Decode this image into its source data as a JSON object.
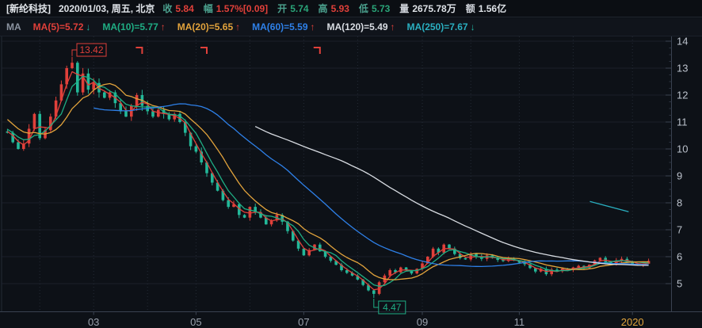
{
  "header": {
    "title": "[新纶科技]",
    "date_info": "2020/01/03, 周五, 北京",
    "fields": [
      {
        "key": "close",
        "label": "收",
        "value": "5.84",
        "tone": "red",
        "label_tone": "teal"
      },
      {
        "key": "change",
        "label": "幅",
        "value": "1.57%[0.09]",
        "tone": "red",
        "label_tone": "teal"
      },
      {
        "key": "open",
        "label": "开",
        "value": "5.74",
        "tone": "green",
        "label_tone": "teal"
      },
      {
        "key": "high",
        "label": "高",
        "value": "5.93",
        "tone": "red",
        "label_tone": "teal"
      },
      {
        "key": "low",
        "label": "低",
        "value": "5.73",
        "tone": "green",
        "label_tone": "teal"
      },
      {
        "key": "volume",
        "label": "量",
        "value": "2675.78万",
        "tone": "white",
        "label_tone": "white"
      },
      {
        "key": "turnover",
        "label": "额",
        "value": "1.56亿",
        "tone": "white",
        "label_tone": "white"
      }
    ]
  },
  "ma_bar": {
    "prefix": "MA",
    "items": [
      {
        "key": "ma5",
        "text": "MA(5)=5.72",
        "arrow": "down"
      },
      {
        "key": "ma10",
        "text": "MA(10)=5.77",
        "arrow": "up"
      },
      {
        "key": "ma20",
        "text": "MA(20)=5.65",
        "arrow": "up"
      },
      {
        "key": "ma60",
        "text": "MA(60)=5.59",
        "arrow": "up"
      },
      {
        "key": "ma120",
        "text": "MA(120)=5.49",
        "arrow": "up"
      },
      {
        "key": "ma250",
        "text": "MA(250)=7.67",
        "arrow": "down"
      }
    ]
  },
  "chart_data": {
    "type": "candlestick",
    "title": "新纶科技 daily K-line, Jan 2019 - Jan 2020",
    "y_axis": {
      "min": 5,
      "max": 14,
      "tick_step": 1,
      "ticks": [
        14,
        13,
        12,
        11,
        10,
        9,
        8,
        7,
        6,
        5
      ]
    },
    "x_axis": {
      "labels": [
        {
          "text": "03",
          "index": 16,
          "highlight": false
        },
        {
          "text": "05",
          "index": 35,
          "highlight": false
        },
        {
          "text": "07",
          "index": 55,
          "highlight": false
        },
        {
          "text": "09",
          "index": 77,
          "highlight": false
        },
        {
          "text": "11",
          "index": 95,
          "highlight": false
        },
        {
          "text": "2020",
          "index": 116,
          "highlight": true
        }
      ],
      "minor_gridline_indices": [
        6,
        26,
        45,
        65,
        86,
        105
      ]
    },
    "closes": [
      10.6,
      10.25,
      10.0,
      10.2,
      10.75,
      11.3,
      10.4,
      10.7,
      11.2,
      11.8,
      12.4,
      13.0,
      13.2,
      12.1,
      12.8,
      12.2,
      12.45,
      12.1,
      11.9,
      12.1,
      11.7,
      11.4,
      11.2,
      11.6,
      12.0,
      11.6,
      11.4,
      11.2,
      11.45,
      11.3,
      11.1,
      11.3,
      11.0,
      10.6,
      10.1,
      9.9,
      9.5,
      9.1,
      8.75,
      8.45,
      8.1,
      7.85,
      7.95,
      7.55,
      7.45,
      7.85,
      7.65,
      7.45,
      7.2,
      7.35,
      7.55,
      7.3,
      6.95,
      6.6,
      6.3,
      6.05,
      6.25,
      6.45,
      6.2,
      6.0,
      5.85,
      5.7,
      5.5,
      5.4,
      5.3,
      5.15,
      4.95,
      4.75,
      4.62,
      5.05,
      5.3,
      5.5,
      5.42,
      5.6,
      5.5,
      5.38,
      5.55,
      5.75,
      6.0,
      6.3,
      6.15,
      6.45,
      6.3,
      6.1,
      5.95,
      5.9,
      6.1,
      6.0,
      5.92,
      6.05,
      5.95,
      5.88,
      5.84,
      5.92,
      5.86,
      5.78,
      5.72,
      5.58,
      5.45,
      5.55,
      5.35,
      5.52,
      5.46,
      5.56,
      5.5,
      5.6,
      5.66,
      5.58,
      5.7,
      5.86,
      5.96,
      5.8,
      5.74,
      5.86,
      5.92,
      5.8,
      5.74,
      5.7,
      5.74,
      5.84
    ],
    "pre_window_closes_estimate": [
      13.2,
      12.8,
      12.4,
      12.0,
      11.7,
      11.4,
      11.2,
      11.0,
      10.9,
      10.8,
      10.7,
      10.65
    ],
    "today_ohlc": {
      "open": 5.74,
      "high": 5.93,
      "low": 5.73,
      "close": 5.84
    },
    "high_tag": {
      "text": "13.42",
      "price": 13.42,
      "index": 12
    },
    "low_tag": {
      "text": "4.47",
      "price": 4.47,
      "index": 68
    },
    "event_marker_indices": [
      25,
      37,
      58
    ],
    "ma250_segment": {
      "points_frac_price": [
        [
          0.905,
          8.05
        ],
        [
          0.965,
          7.67
        ]
      ]
    },
    "ma_windows_days": {
      "ma5": 5,
      "ma10": 10,
      "ma20": 20,
      "ma60": 60,
      "ma120": 120,
      "ma250": 250
    },
    "ma_current_values": {
      "ma5": 5.72,
      "ma10": 5.77,
      "ma20": 5.65,
      "ma60": 5.59,
      "ma120": 5.49,
      "ma250": 7.67
    }
  },
  "colors": {
    "up": "#e0403a",
    "down": "#23b899",
    "ma5": "#e0403a",
    "ma10": "#1fae84",
    "ma20": "#e2a33c",
    "ma60": "#2e80e8",
    "ma120": "#d8dce2",
    "ma250": "#2aafc0",
    "bg": "#0d1117",
    "grid": "#1a2028",
    "grid_v": "#242b36",
    "axis": "#3a4250",
    "tick_label": "#bcc2cc",
    "x_label": "#9aa1ac",
    "x_label_highlight": "#e0a43c",
    "red": "#e0403a",
    "green": "#2aa478"
  }
}
